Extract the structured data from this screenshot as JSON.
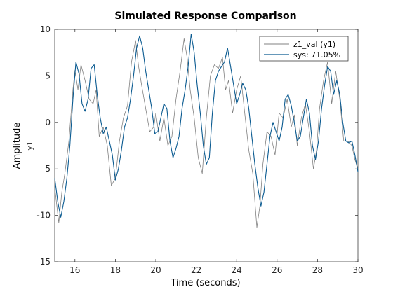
{
  "chart_data": {
    "type": "line",
    "title": "Simulated Response Comparison",
    "xlabel": "Time (seconds)",
    "ylabel": "Amplitude",
    "channel_label": "y1",
    "xlim": [
      15,
      30
    ],
    "ylim": [
      -15,
      10
    ],
    "x_ticks": [
      16,
      18,
      20,
      22,
      24,
      26,
      28,
      30
    ],
    "y_ticks": [
      -15,
      -10,
      -5,
      0,
      5,
      10
    ],
    "grid": false,
    "legend_position": "top-right",
    "series": [
      {
        "name": "z1_val (y1)",
        "color": "#808080",
        "x": [
          15.0,
          15.2,
          15.35,
          15.5,
          15.7,
          15.9,
          16.0,
          16.15,
          16.3,
          16.5,
          16.7,
          16.9,
          17.05,
          17.2,
          17.4,
          17.6,
          17.8,
          18.0,
          18.2,
          18.4,
          18.6,
          18.8,
          19.0,
          19.15,
          19.3,
          19.5,
          19.7,
          19.9,
          20.0,
          20.2,
          20.4,
          20.6,
          20.8,
          21.0,
          21.2,
          21.4,
          21.55,
          21.7,
          21.9,
          22.1,
          22.3,
          22.5,
          22.7,
          22.9,
          23.1,
          23.3,
          23.45,
          23.6,
          23.8,
          24.0,
          24.2,
          24.4,
          24.6,
          24.8,
          25.0,
          25.15,
          25.3,
          25.5,
          25.7,
          25.9,
          26.1,
          26.3,
          26.5,
          26.7,
          26.85,
          27.0,
          27.2,
          27.4,
          27.6,
          27.8,
          27.95,
          28.1,
          28.3,
          28.5,
          28.7,
          28.9,
          29.1,
          29.3,
          29.5,
          29.7,
          29.85,
          30.0
        ],
        "y": [
          -7,
          -10.8,
          -7.5,
          -5.5,
          -2,
          3.5,
          5.6,
          3.5,
          6.2,
          4.5,
          2.5,
          2.0,
          3.5,
          -1.5,
          -0.5,
          -2.5,
          -6.8,
          -6.0,
          -2.0,
          0.5,
          1.8,
          6.5,
          8.8,
          6.0,
          4.0,
          1.5,
          -1.0,
          -0.5,
          1.0,
          -2.0,
          0.5,
          -2.5,
          -1.5,
          2.5,
          5.5,
          9.0,
          7.0,
          3.5,
          0.5,
          -3.8,
          -5.5,
          0.5,
          5.0,
          6.2,
          5.8,
          7.0,
          3.5,
          4.5,
          1.0,
          3.5,
          5.0,
          1.0,
          -3.0,
          -5.5,
          -11.3,
          -9.0,
          -4.5,
          -1.0,
          -1.5,
          -3.5,
          1.0,
          0.5,
          2.5,
          -0.5,
          0.8,
          -2.5,
          0.5,
          2.0,
          -1.0,
          -5.0,
          -3.0,
          1.5,
          4.5,
          6.5,
          2.0,
          5.5,
          2.5,
          -2.0,
          -2.0,
          -2.5,
          -4.0,
          -5.0
        ]
      },
      {
        "name": "sys: 71.05%",
        "color": "#0b5b91",
        "x": [
          15.0,
          15.15,
          15.3,
          15.45,
          15.6,
          15.75,
          15.9,
          16.05,
          16.2,
          16.35,
          16.5,
          16.65,
          16.8,
          16.95,
          17.1,
          17.25,
          17.4,
          17.55,
          17.7,
          17.85,
          18.0,
          18.15,
          18.3,
          18.45,
          18.6,
          18.75,
          18.9,
          19.05,
          19.2,
          19.35,
          19.5,
          19.65,
          19.8,
          19.95,
          20.1,
          20.25,
          20.4,
          20.55,
          20.7,
          20.85,
          21.0,
          21.15,
          21.3,
          21.45,
          21.6,
          21.75,
          21.9,
          22.05,
          22.2,
          22.35,
          22.5,
          22.65,
          22.8,
          22.95,
          23.1,
          23.25,
          23.4,
          23.55,
          23.7,
          23.85,
          24.0,
          24.15,
          24.3,
          24.45,
          24.6,
          24.75,
          24.9,
          25.05,
          25.2,
          25.35,
          25.5,
          25.65,
          25.8,
          25.95,
          26.1,
          26.25,
          26.4,
          26.55,
          26.7,
          26.85,
          27.0,
          27.15,
          27.3,
          27.45,
          27.6,
          27.75,
          27.9,
          28.05,
          28.2,
          28.35,
          28.5,
          28.65,
          28.8,
          28.95,
          29.1,
          29.25,
          29.4,
          29.55,
          29.7,
          29.85,
          30.0
        ],
        "y": [
          -6.0,
          -8.5,
          -10.2,
          -8.5,
          -6.0,
          -2.5,
          2.5,
          6.5,
          5.2,
          2.0,
          1.2,
          2.5,
          5.8,
          6.2,
          3.0,
          0.5,
          -1.2,
          -0.5,
          -2.0,
          -3.5,
          -6.2,
          -5.0,
          -3.0,
          -0.5,
          0.5,
          2.5,
          5.0,
          8.0,
          9.3,
          8.0,
          5.5,
          3.5,
          1.5,
          -1.2,
          -1.0,
          0.5,
          2.0,
          1.5,
          -2.0,
          -3.8,
          -2.8,
          -1.5,
          1.5,
          3.5,
          6.0,
          9.5,
          7.5,
          4.0,
          1.0,
          -2.5,
          -4.5,
          -3.8,
          1.0,
          4.5,
          5.5,
          6.0,
          6.5,
          8.0,
          6.0,
          4.0,
          2.0,
          3.0,
          4.2,
          3.5,
          1.5,
          -1.5,
          -4.5,
          -7.0,
          -9.0,
          -7.5,
          -4.5,
          -1.5,
          0.0,
          -1.0,
          -2.0,
          -0.5,
          2.5,
          3.0,
          1.8,
          0.0,
          -2.0,
          -1.5,
          0.5,
          2.5,
          1.0,
          -2.5,
          -4.0,
          -2.0,
          1.5,
          4.0,
          6.0,
          5.5,
          3.0,
          4.5,
          3.0,
          0.0,
          -2.0,
          -2.2,
          -2.0,
          -3.5,
          -5.3
        ]
      }
    ]
  }
}
